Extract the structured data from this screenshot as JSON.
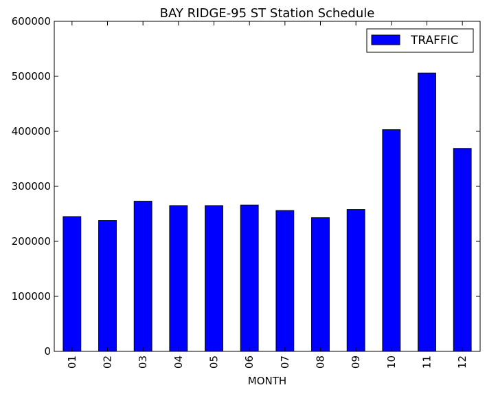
{
  "chart_data": {
    "type": "bar",
    "title": "BAY RIDGE-95 ST Station Schedule",
    "xlabel": "MONTH",
    "ylabel": "",
    "categories": [
      "01",
      "02",
      "03",
      "04",
      "05",
      "06",
      "07",
      "08",
      "09",
      "10",
      "11",
      "12"
    ],
    "series": [
      {
        "name": "TRAFFIC",
        "color": "#0000ff",
        "values": [
          245000,
          238000,
          273000,
          265000,
          265000,
          266000,
          256000,
          243000,
          258000,
          403000,
          506000,
          369000
        ]
      }
    ],
    "ylim": [
      0,
      600000
    ],
    "yticks": [
      "0",
      "100000",
      "200000",
      "300000",
      "400000",
      "500000",
      "600000"
    ],
    "yticks_values": [
      0,
      100000,
      200000,
      300000,
      400000,
      500000,
      600000
    ],
    "grid": false,
    "legend_position": "top-right"
  }
}
